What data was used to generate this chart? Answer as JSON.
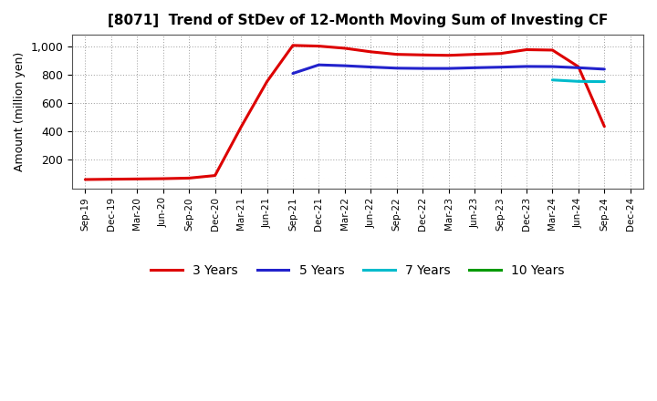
{
  "title": "[8071]  Trend of StDev of 12-Month Moving Sum of Investing CF",
  "ylabel": "Amount (million yen)",
  "background_color": "#ffffff",
  "grid_color": "#999999",
  "legend_entries": [
    "3 Years",
    "5 Years",
    "7 Years",
    "10 Years"
  ],
  "line_colors": [
    "#dd0000",
    "#2222cc",
    "#00bbcc",
    "#009900"
  ],
  "x_labels": [
    "Sep-19",
    "Dec-19",
    "Mar-20",
    "Jun-20",
    "Sep-20",
    "Dec-20",
    "Mar-21",
    "Jun-21",
    "Sep-21",
    "Dec-21",
    "Mar-22",
    "Jun-22",
    "Sep-22",
    "Dec-22",
    "Mar-23",
    "Jun-23",
    "Sep-23",
    "Dec-23",
    "Mar-24",
    "Jun-24",
    "Sep-24",
    "Dec-24"
  ],
  "ylim": [
    0,
    1080
  ],
  "yticks": [
    200,
    400,
    600,
    800,
    1000
  ],
  "ytick_labels": [
    "200",
    "400",
    "600",
    "800",
    "1,000"
  ],
  "series_3yr": [
    62,
    64,
    66,
    68,
    72,
    90,
    430,
    750,
    1005,
    1000,
    985,
    960,
    942,
    938,
    935,
    942,
    948,
    975,
    972,
    855,
    435,
    null
  ],
  "series_5yr": [
    null,
    null,
    null,
    null,
    null,
    null,
    null,
    null,
    808,
    868,
    862,
    853,
    845,
    843,
    843,
    848,
    852,
    857,
    856,
    848,
    838,
    null
  ],
  "series_7yr": [
    null,
    null,
    null,
    null,
    null,
    null,
    null,
    null,
    null,
    null,
    null,
    null,
    null,
    null,
    null,
    null,
    null,
    null,
    762,
    752,
    750,
    null
  ],
  "series_10yr": [
    null,
    null,
    null,
    null,
    null,
    null,
    null,
    null,
    null,
    null,
    null,
    null,
    null,
    null,
    null,
    null,
    null,
    null,
    null,
    null,
    null,
    null
  ]
}
